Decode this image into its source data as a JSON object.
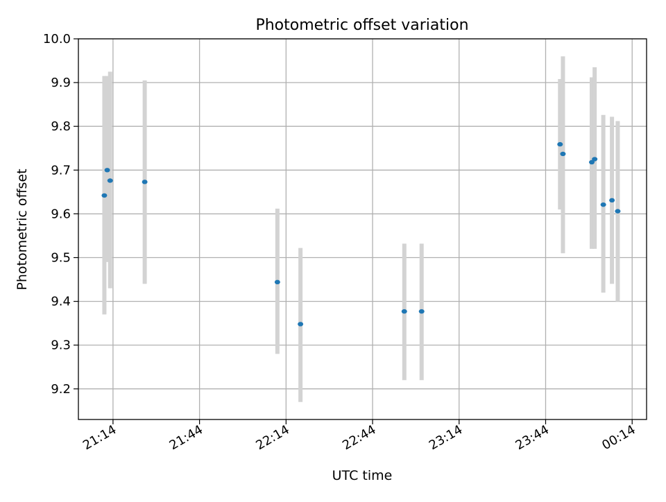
{
  "chart_data": {
    "type": "scatter",
    "title": "Photometric offset variation",
    "xlabel": "UTC time",
    "ylabel": "Photometric offset",
    "x_tick_labels": [
      "21:14",
      "21:44",
      "22:14",
      "22:44",
      "23:14",
      "23:44",
      "00:14"
    ],
    "y_tick_labels": [
      "9.2",
      "9.3",
      "9.4",
      "9.5",
      "9.6",
      "9.7",
      "9.8",
      "9.9",
      "10.0"
    ],
    "xlim": [
      "21:02",
      "00:19"
    ],
    "ylim": [
      9.13,
      10.0
    ],
    "grid": true,
    "colors": {
      "points": "#1f77b4",
      "errorbars": "#d3d3d3",
      "grid": "#b0b0b0"
    },
    "series": [
      {
        "points": [
          {
            "x": "21:11",
            "y": 9.642,
            "err_low": 9.37,
            "err_high": 9.915
          },
          {
            "x": "21:12",
            "y": 9.7,
            "err_low": 9.49,
            "err_high": 9.915
          },
          {
            "x": "21:13",
            "y": 9.676,
            "err_low": 9.43,
            "err_high": 9.925
          },
          {
            "x": "21:25",
            "y": 9.673,
            "err_low": 9.44,
            "err_high": 9.905
          },
          {
            "x": "22:11",
            "y": 9.444,
            "err_low": 9.28,
            "err_high": 9.612
          },
          {
            "x": "22:19",
            "y": 9.348,
            "err_low": 9.17,
            "err_high": 9.522
          },
          {
            "x": "22:55",
            "y": 9.377,
            "err_low": 9.22,
            "err_high": 9.532
          },
          {
            "x": "23:01",
            "y": 9.377,
            "err_low": 9.22,
            "err_high": 9.532
          },
          {
            "x": "23:49",
            "y": 9.759,
            "err_low": 9.61,
            "err_high": 9.908
          },
          {
            "x": "23:50",
            "y": 9.737,
            "err_low": 9.51,
            "err_high": 9.96
          },
          {
            "x": "00:00",
            "y": 9.718,
            "err_low": 9.52,
            "err_high": 9.912
          },
          {
            "x": "00:01",
            "y": 9.725,
            "err_low": 9.52,
            "err_high": 9.935
          },
          {
            "x": "00:04",
            "y": 9.621,
            "err_low": 9.42,
            "err_high": 9.826
          },
          {
            "x": "00:07",
            "y": 9.631,
            "err_low": 9.44,
            "err_high": 9.822
          },
          {
            "x": "00:09",
            "y": 9.606,
            "err_low": 9.4,
            "err_high": 9.812
          }
        ]
      }
    ]
  }
}
